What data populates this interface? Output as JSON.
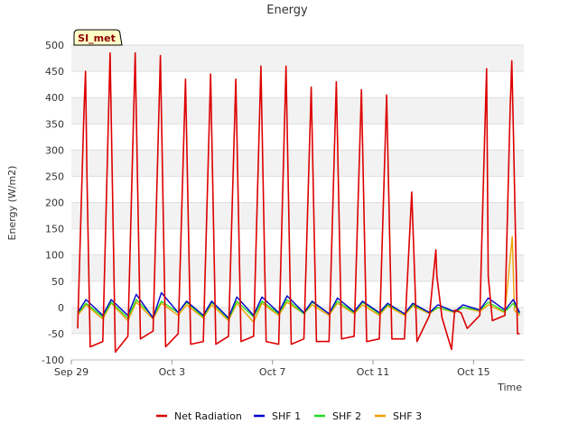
{
  "chart_data": {
    "type": "line",
    "title": "Energy",
    "xlabel": "Time",
    "ylabel": "Energy (W/m2)",
    "badge": "SI_met",
    "ylim": [
      -100,
      500
    ],
    "yticks": [
      -100,
      -50,
      0,
      50,
      100,
      150,
      200,
      250,
      300,
      350,
      400,
      450,
      500
    ],
    "xlim": [
      "2023-09-29",
      "2023-10-17"
    ],
    "xticks": [
      {
        "date": "2023-09-29",
        "label": "Sep 29"
      },
      {
        "date": "2023-10-03",
        "label": "Oct 3"
      },
      {
        "date": "2023-10-07",
        "label": "Oct 7"
      },
      {
        "date": "2023-10-11",
        "label": "Oct 11"
      },
      {
        "date": "2023-10-15",
        "label": "Oct 15"
      }
    ],
    "grid": true,
    "legend_position": "bottom",
    "colors": {
      "Net Radiation": "#dd0000",
      "SHF 1": "#0000cc",
      "SHF 2": "#22dd22",
      "SHF 3": "#f0a000"
    },
    "series": [
      {
        "name": "Net Radiation",
        "x": [
          "2023-09-29 06:00",
          "2023-09-29 12:00",
          "2023-09-29 13:30",
          "2023-09-29 15:00",
          "2023-09-29 18:00",
          "2023-09-30 06:00",
          "2023-09-30 13:00",
          "2023-09-30 18:00",
          "2023-10-01 06:00",
          "2023-10-01 13:00",
          "2023-10-01 18:00",
          "2023-10-02 06:00",
          "2023-10-02 13:00",
          "2023-10-02 18:00",
          "2023-10-03 06:00",
          "2023-10-03 13:00",
          "2023-10-03 18:00",
          "2023-10-04 06:00",
          "2023-10-04 13:00",
          "2023-10-04 18:00",
          "2023-10-05 06:00",
          "2023-10-05 13:00",
          "2023-10-05 18:00",
          "2023-10-06 06:00",
          "2023-10-06 13:00",
          "2023-10-06 18:00",
          "2023-10-07 06:00",
          "2023-10-07 13:00",
          "2023-10-07 18:00",
          "2023-10-08 06:00",
          "2023-10-08 13:00",
          "2023-10-08 18:00",
          "2023-10-09 06:00",
          "2023-10-09 13:00",
          "2023-10-09 18:00",
          "2023-10-10 06:00",
          "2023-10-10 13:00",
          "2023-10-10 18:00",
          "2023-10-11 06:00",
          "2023-10-11 13:00",
          "2023-10-11 18:00",
          "2023-10-12 06:00",
          "2023-10-12 13:00",
          "2023-10-12 18:00",
          "2023-10-13 06:00",
          "2023-10-13 12:00",
          "2023-10-13 13:00",
          "2023-10-13 18:00",
          "2023-10-14 03:00",
          "2023-10-14 06:00",
          "2023-10-14 12:00",
          "2023-10-14 18:00",
          "2023-10-15 06:00",
          "2023-10-15 10:00",
          "2023-10-15 12:30",
          "2023-10-15 14:00",
          "2023-10-15 18:00",
          "2023-10-16 06:00",
          "2023-10-16 11:00",
          "2023-10-16 12:30",
          "2023-10-16 14:00",
          "2023-10-16 18:00",
          "2023-10-16 20:00"
        ],
        "values": [
          -40,
          370,
          450,
          240,
          -75,
          -65,
          485,
          -85,
          -55,
          485,
          -60,
          -45,
          480,
          -75,
          -50,
          435,
          -70,
          -65,
          445,
          -70,
          -55,
          435,
          -65,
          -55,
          460,
          -65,
          -70,
          460,
          -70,
          -60,
          420,
          -65,
          -65,
          430,
          -60,
          -55,
          415,
          -65,
          -60,
          405,
          -60,
          -60,
          220,
          -65,
          -15,
          110,
          60,
          -20,
          -80,
          -5,
          -10,
          -40,
          -15,
          280,
          455,
          60,
          -25,
          -15,
          380,
          470,
          340,
          -50,
          -50
        ]
      },
      {
        "name": "SHF 1",
        "x": [
          "2023-09-29 06:00",
          "2023-09-29 14:00",
          "2023-09-30 06:00",
          "2023-09-30 14:00",
          "2023-10-01 06:00",
          "2023-10-01 14:00",
          "2023-10-02 06:00",
          "2023-10-02 14:00",
          "2023-10-03 06:00",
          "2023-10-03 14:00",
          "2023-10-04 06:00",
          "2023-10-04 14:00",
          "2023-10-05 06:00",
          "2023-10-05 14:00",
          "2023-10-06 06:00",
          "2023-10-06 14:00",
          "2023-10-07 06:00",
          "2023-10-07 14:00",
          "2023-10-08 06:00",
          "2023-10-08 14:00",
          "2023-10-09 06:00",
          "2023-10-09 14:00",
          "2023-10-10 06:00",
          "2023-10-10 14:00",
          "2023-10-11 06:00",
          "2023-10-11 14:00",
          "2023-10-12 06:00",
          "2023-10-12 14:00",
          "2023-10-13 06:00",
          "2023-10-13 14:00",
          "2023-10-14 06:00",
          "2023-10-14 14:00",
          "2023-10-15 06:00",
          "2023-10-15 14:00",
          "2023-10-16 06:00",
          "2023-10-16 14:00",
          "2023-10-16 20:00"
        ],
        "values": [
          -10,
          15,
          -15,
          15,
          -15,
          25,
          -20,
          28,
          -10,
          12,
          -15,
          12,
          -20,
          20,
          -15,
          20,
          -10,
          22,
          -10,
          12,
          -12,
          18,
          -8,
          12,
          -10,
          8,
          -12,
          8,
          -10,
          5,
          -8,
          5,
          -5,
          18,
          -5,
          15,
          -10
        ]
      },
      {
        "name": "SHF 2",
        "x": [
          "2023-09-29 06:00",
          "2023-09-29 14:00",
          "2023-09-30 06:00",
          "2023-09-30 14:00",
          "2023-10-01 06:00",
          "2023-10-01 14:00",
          "2023-10-02 06:00",
          "2023-10-02 14:00",
          "2023-10-03 06:00",
          "2023-10-03 14:00",
          "2023-10-04 06:00",
          "2023-10-04 14:00",
          "2023-10-05 06:00",
          "2023-10-05 14:00",
          "2023-10-06 06:00",
          "2023-10-06 14:00",
          "2023-10-07 06:00",
          "2023-10-07 14:00",
          "2023-10-08 06:00",
          "2023-10-08 14:00",
          "2023-10-09 06:00",
          "2023-10-09 14:00",
          "2023-10-10 06:00",
          "2023-10-10 14:00",
          "2023-10-11 06:00",
          "2023-10-11 14:00",
          "2023-10-12 06:00",
          "2023-10-12 14:00",
          "2023-10-13 06:00",
          "2023-10-13 14:00",
          "2023-10-14 06:00",
          "2023-10-14 14:00",
          "2023-10-15 06:00",
          "2023-10-15 14:00",
          "2023-10-16 06:00",
          "2023-10-16 14:00",
          "2023-10-16 20:00"
        ],
        "values": [
          -12,
          8,
          -18,
          10,
          -20,
          15,
          -18,
          12,
          -10,
          10,
          -18,
          10,
          -22,
          12,
          -18,
          12,
          -12,
          15,
          -12,
          10,
          -12,
          12,
          -10,
          10,
          -12,
          5,
          -12,
          5,
          -10,
          0,
          -8,
          0,
          -5,
          10,
          -8,
          8,
          -12
        ]
      },
      {
        "name": "SHF 3",
        "x": [
          "2023-09-29 06:00",
          "2023-09-29 14:00",
          "2023-09-30 06:00",
          "2023-09-30 14:00",
          "2023-10-01 06:00",
          "2023-10-01 14:00",
          "2023-10-02 06:00",
          "2023-10-02 14:00",
          "2023-10-03 06:00",
          "2023-10-03 14:00",
          "2023-10-04 06:00",
          "2023-10-04 14:00",
          "2023-10-05 06:00",
          "2023-10-05 14:00",
          "2023-10-06 06:00",
          "2023-10-06 14:00",
          "2023-10-07 06:00",
          "2023-10-07 14:00",
          "2023-10-08 06:00",
          "2023-10-08 14:00",
          "2023-10-09 06:00",
          "2023-10-09 14:00",
          "2023-10-10 06:00",
          "2023-10-10 14:00",
          "2023-10-11 06:00",
          "2023-10-11 14:00",
          "2023-10-12 06:00",
          "2023-10-12 14:00",
          "2023-10-13 06:00",
          "2023-10-13 14:00",
          "2023-10-14 06:00",
          "2023-10-14 14:00",
          "2023-10-15 06:00",
          "2023-10-15 14:00",
          "2023-10-16 06:00",
          "2023-10-16 13:00",
          "2023-10-16 15:00",
          "2023-10-16 20:00"
        ],
        "values": [
          -15,
          5,
          -22,
          8,
          -25,
          10,
          -22,
          8,
          -15,
          5,
          -20,
          5,
          -25,
          8,
          -28,
          8,
          -15,
          10,
          -12,
          5,
          -15,
          8,
          -12,
          5,
          -15,
          3,
          -15,
          3,
          -12,
          0,
          -10,
          0,
          -8,
          5,
          -10,
          135,
          -5,
          -15
        ]
      }
    ]
  }
}
